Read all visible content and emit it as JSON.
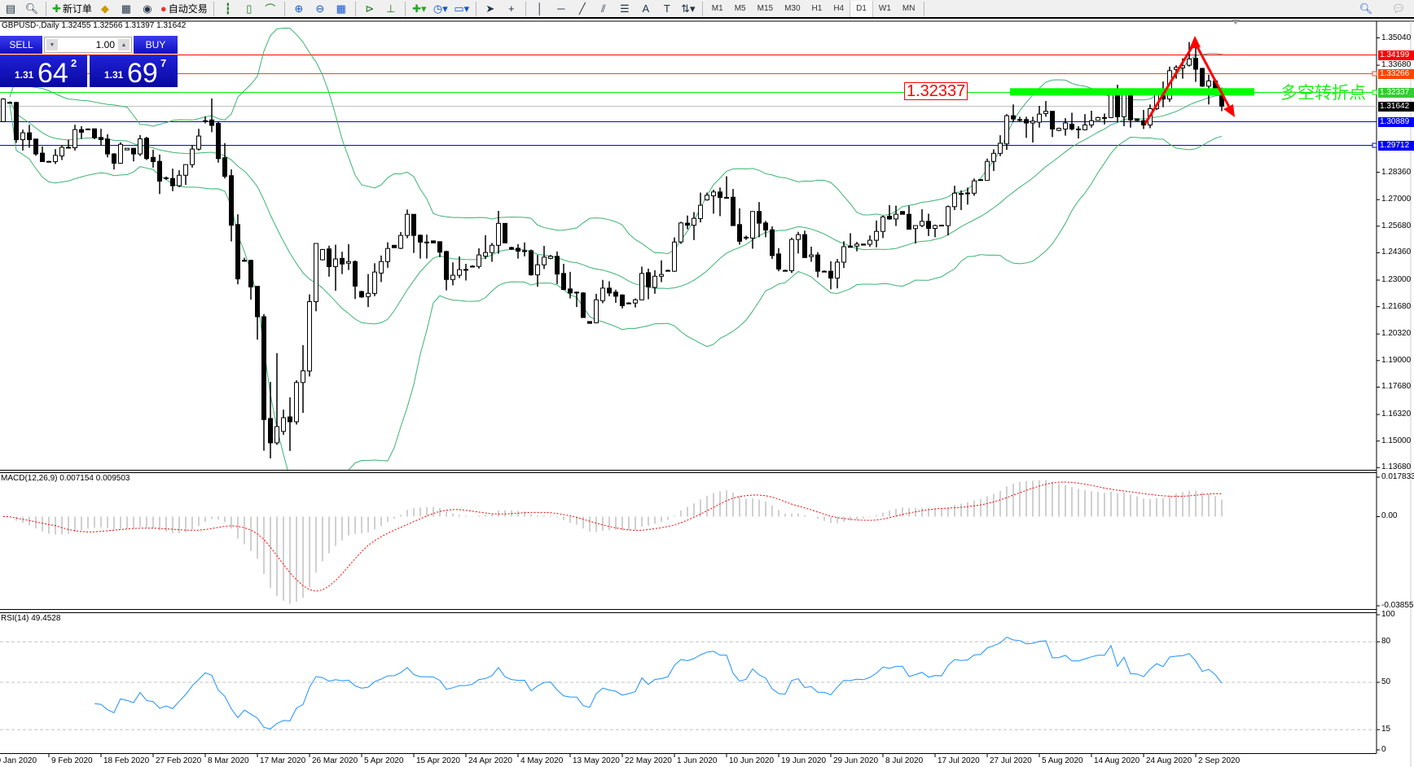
{
  "toolbar": {
    "new_order_label": "新订单",
    "auto_trading_label": "自动交易",
    "icons": [
      "new-chart-icon",
      "zoom-window-icon",
      "new-order-icon",
      "navigator-icon",
      "data-window-icon",
      "signals-icon",
      "auto-trading-icon",
      "bar-chart-icon",
      "candlestick-icon",
      "line-chart-icon",
      "zoom-in-icon",
      "zoom-out-icon",
      "tile-windows-icon",
      "auto-scroll-icon",
      "chart-shift-icon",
      "indicators-icon",
      "periods-icon",
      "templates-icon",
      "cursor-icon",
      "crosshair-icon",
      "vertical-line-icon",
      "horizontal-line-icon",
      "trendline-icon",
      "equidistant-channel-icon",
      "fibonacci-icon",
      "text-icon",
      "text-label-icon",
      "arrows-icon"
    ],
    "text_tool": "A",
    "timeframes": [
      "M1",
      "M5",
      "M15",
      "M30",
      "H1",
      "H4",
      "D1",
      "W1",
      "MN"
    ],
    "selected_timeframe": "D1"
  },
  "chart_title": "GBPUSD-,Daily  1.32455 1.32566 1.31397 1.31642",
  "one_click": {
    "sell_label": "SELL",
    "buy_label": "BUY",
    "lot": "1.00",
    "sell_price": {
      "big_figure": "1.31",
      "pips": "64",
      "point": "2"
    },
    "buy_price": {
      "big_figure": "1.31",
      "pips": "69",
      "point": "7"
    }
  },
  "annotations": {
    "price_text": "1.32337",
    "chinese_text": "多空转折点",
    "arrow_color": "#ff0000",
    "band_color": "#00ff00"
  },
  "chart_data": {
    "type": "candlestick",
    "symbol": "GBPUSD-",
    "timeframe": "Daily",
    "ylim": [
      1.1368,
      1.3504
    ],
    "price_ticks": [
      "1.35040",
      "1.33680",
      "1.28360",
      "1.27000",
      "1.25680",
      "1.24360",
      "1.23000",
      "1.21680",
      "1.20320",
      "1.19000",
      "1.17680",
      "1.16320",
      "1.15000",
      "1.13680"
    ],
    "date_labels": [
      "30 Jan 2020",
      "9 Feb 2020",
      "18 Feb 2020",
      "27 Feb 2020",
      "8 Mar 2020",
      "17 Mar 2020",
      "26 Mar 2020",
      "5 Apr 2020",
      "15 Apr 2020",
      "24 Apr 2020",
      "4 May 2020",
      "13 May 2020",
      "22 May 2020",
      "1 Jun 2020",
      "10 Jun 2020",
      "19 Jun 2020",
      "29 Jun 2020",
      "8 Jul 2020",
      "17 Jul 2020",
      "27 Jul 2020",
      "5 Aug 2020",
      "14 Aug 2020",
      "24 Aug 2020",
      "2 Sep 2020"
    ],
    "hlines": [
      {
        "price": "1.34199",
        "color": "#ff0000",
        "label_bg": "#ff0000"
      },
      {
        "price": "1.33266",
        "color": "#ff4500",
        "label_bg": "#ff4500"
      },
      {
        "price": "1.32337",
        "color": "#00ee00",
        "label_bg": "#32cd32"
      },
      {
        "price": "1.31642",
        "color": "#c0c0c0",
        "label_bg": "#000000"
      },
      {
        "price": "1.30889",
        "color": "#0000ff",
        "label_bg": "#0000ff"
      },
      {
        "price": "1.29712",
        "color": "#0000ff",
        "label_bg": "#0000ff"
      }
    ],
    "indicators": {
      "bollinger": {
        "period": 20,
        "deviation": 2,
        "color": "#3cb371"
      },
      "macd": {
        "label": "MACD(12,26,9) 0.007154 0.009503",
        "ylim": [
          -0.038559,
          0.017833
        ],
        "ticks": [
          "0.017833",
          "0.00",
          "-0.038559"
        ],
        "histogram_color": "#c0c0c0",
        "signal_color": "#ff0000"
      },
      "rsi": {
        "label": "RSI(14) 49.4528",
        "levels": [
          80,
          50,
          15
        ],
        "ticks": [
          "100",
          "80",
          "50",
          "15",
          "0"
        ],
        "color": "#1e90ff"
      }
    },
    "candles": [
      [
        1.3088,
        1.3204,
        1.3086,
        1.32
      ],
      [
        1.3183,
        1.3186,
        1.318,
        1.3183
      ],
      [
        1.3183,
        1.3186,
        1.2982,
        1.2998
      ],
      [
        1.2998,
        1.3048,
        1.2944,
        1.3032
      ],
      [
        1.3032,
        1.3072,
        1.2958,
        1.2998
      ],
      [
        1.3001,
        1.3001,
        1.2918,
        1.2927
      ],
      [
        1.2931,
        1.2964,
        1.2889,
        1.2889
      ],
      [
        1.289,
        1.2893,
        1.2887,
        1.289
      ],
      [
        1.2889,
        1.2951,
        1.2877,
        1.292
      ],
      [
        1.2917,
        1.2971,
        1.2897,
        1.296
      ],
      [
        1.2959,
        1.2998,
        1.2954,
        1.296
      ],
      [
        1.2958,
        1.3072,
        1.2944,
        1.3048
      ],
      [
        1.3048,
        1.3065,
        1.3002,
        1.3035
      ],
      [
        1.3051,
        1.3054,
        1.3048,
        1.3051
      ],
      [
        1.3052,
        1.3052,
        1.3,
        1.3008
      ],
      [
        1.3009,
        1.3052,
        1.2971,
        1.2998
      ],
      [
        1.3001,
        1.3025,
        1.291,
        1.2927
      ],
      [
        1.2927,
        1.2931,
        1.285,
        1.2881
      ],
      [
        1.2881,
        1.2985,
        1.2881,
        1.2975
      ],
      [
        1.2947,
        1.2955,
        1.2947,
        1.2955
      ],
      [
        1.2955,
        1.2955,
        1.289,
        1.2927
      ],
      [
        1.2927,
        1.3021,
        1.2917,
        1.3002
      ],
      [
        1.3005,
        1.3012,
        1.2897,
        1.2904
      ],
      [
        1.291,
        1.2948,
        1.2859,
        1.2889
      ],
      [
        1.289,
        1.2924,
        1.2728,
        1.2792
      ],
      [
        1.2808,
        1.2815,
        1.2799,
        1.2808
      ],
      [
        1.2805,
        1.2854,
        1.2742,
        1.2769
      ],
      [
        1.2769,
        1.2846,
        1.2762,
        1.2821
      ],
      [
        1.2821,
        1.2874,
        1.2773,
        1.2874
      ],
      [
        1.2874,
        1.2971,
        1.2859,
        1.2951
      ],
      [
        1.2951,
        1.3052,
        1.2944,
        1.3016
      ],
      [
        1.3092,
        1.3113,
        1.3079,
        1.3092
      ],
      [
        1.3096,
        1.3203,
        1.3035,
        1.3069
      ],
      [
        1.3079,
        1.3088,
        1.2884,
        1.2904
      ],
      [
        1.2908,
        1.2981,
        1.2805,
        1.2816
      ],
      [
        1.2819,
        1.285,
        1.2492,
        1.2573
      ],
      [
        1.2576,
        1.2627,
        1.2279,
        1.2306
      ],
      [
        1.2398,
        1.2411,
        1.2391,
        1.2398
      ],
      [
        1.2398,
        1.2401,
        1.2203,
        1.2266
      ],
      [
        1.2269,
        1.2269,
        1.2004,
        1.2118
      ],
      [
        1.2118,
        1.2131,
        1.1452,
        1.1607
      ],
      [
        1.1612,
        1.1794,
        1.1414,
        1.1491
      ],
      [
        1.1491,
        1.1937,
        1.1481,
        1.1572
      ],
      [
        1.1548,
        1.1656,
        1.1531,
        1.1616
      ],
      [
        1.162,
        1.1717,
        1.1451,
        1.1596
      ],
      [
        1.1596,
        1.1802,
        1.1582,
        1.1791
      ],
      [
        1.1791,
        1.1977,
        1.164,
        1.1849
      ],
      [
        1.1848,
        1.2229,
        1.1821,
        1.2193
      ],
      [
        1.2193,
        1.2484,
        1.2145,
        1.2482
      ],
      [
        1.2401,
        1.2455,
        1.2398,
        1.2452
      ],
      [
        1.2455,
        1.2471,
        1.2317,
        1.2367
      ],
      [
        1.2367,
        1.2476,
        1.2247,
        1.2405
      ],
      [
        1.2408,
        1.2441,
        1.233,
        1.238
      ],
      [
        1.2384,
        1.2479,
        1.235,
        1.2392
      ],
      [
        1.2392,
        1.2398,
        1.2206,
        1.227
      ],
      [
        1.2243,
        1.2247,
        1.2212,
        1.2216
      ],
      [
        1.2218,
        1.233,
        1.2166,
        1.2234
      ],
      [
        1.2234,
        1.2384,
        1.222,
        1.234
      ],
      [
        1.2335,
        1.2422,
        1.229,
        1.2392
      ],
      [
        1.2392,
        1.2488,
        1.2361,
        1.2457
      ],
      [
        1.2473,
        1.2473,
        1.2461,
        1.2461
      ],
      [
        1.2458,
        1.2539,
        1.2454,
        1.2522
      ],
      [
        1.2522,
        1.2651,
        1.2508,
        1.2627
      ],
      [
        1.2627,
        1.2627,
        1.2435,
        1.2522
      ],
      [
        1.2523,
        1.2526,
        1.2407,
        1.2489
      ],
      [
        1.2489,
        1.2526,
        1.2407,
        1.2489
      ],
      [
        1.2495,
        1.2495,
        1.2485,
        1.2485
      ],
      [
        1.2491,
        1.2491,
        1.2414,
        1.2439
      ],
      [
        1.2442,
        1.2446,
        1.2249,
        1.2303
      ],
      [
        1.2303,
        1.2388,
        1.2274,
        1.2324
      ],
      [
        1.2324,
        1.2418,
        1.231,
        1.2352
      ],
      [
        1.2353,
        1.2381,
        1.2298,
        1.2353
      ],
      [
        1.2369,
        1.2374,
        1.2364,
        1.2369
      ],
      [
        1.2368,
        1.2458,
        1.2357,
        1.2425
      ],
      [
        1.2419,
        1.2523,
        1.2404,
        1.2437
      ],
      [
        1.2437,
        1.2485,
        1.2391,
        1.2473
      ],
      [
        1.2473,
        1.2644,
        1.2431,
        1.2582
      ],
      [
        1.2582,
        1.2582,
        1.2485,
        1.2485
      ],
      [
        1.2462,
        1.2466,
        1.245,
        1.2454
      ],
      [
        1.2458,
        1.2479,
        1.2407,
        1.2444
      ],
      [
        1.2446,
        1.2487,
        1.2418,
        1.2446
      ],
      [
        1.2446,
        1.2452,
        1.2322,
        1.2326
      ],
      [
        1.2326,
        1.2425,
        1.2267,
        1.2376
      ],
      [
        1.2376,
        1.247,
        1.2355,
        1.2414
      ],
      [
        1.2408,
        1.2425,
        1.2404,
        1.2418
      ],
      [
        1.2418,
        1.2442,
        1.228,
        1.233
      ],
      [
        1.2333,
        1.2381,
        1.2252,
        1.2253
      ],
      [
        1.2256,
        1.2341,
        1.2209,
        1.2236
      ],
      [
        1.224,
        1.2243,
        1.2166,
        1.2236
      ],
      [
        1.2236,
        1.224,
        1.2114,
        1.2114
      ],
      [
        1.2094,
        1.2094,
        1.2085,
        1.2085
      ],
      [
        1.2088,
        1.2232,
        1.2085,
        1.2202
      ],
      [
        1.2198,
        1.2301,
        1.2185,
        1.226
      ],
      [
        1.226,
        1.2294,
        1.222,
        1.2236
      ],
      [
        1.224,
        1.2252,
        1.2187,
        1.222
      ],
      [
        1.2226,
        1.2229,
        1.2159,
        1.2173
      ],
      [
        1.2186,
        1.219,
        1.2182,
        1.2186
      ],
      [
        1.2186,
        1.2209,
        1.2164,
        1.2202
      ],
      [
        1.2202,
        1.2367,
        1.22,
        1.2333
      ],
      [
        1.2337,
        1.2357,
        1.2205,
        1.2266
      ],
      [
        1.2264,
        1.2349,
        1.2232,
        1.2319
      ],
      [
        1.2319,
        1.2398,
        1.229,
        1.2328
      ],
      [
        1.2348,
        1.2352,
        1.2344,
        1.2348
      ],
      [
        1.2344,
        1.2512,
        1.2341,
        1.2489
      ],
      [
        1.249,
        1.259,
        1.248,
        1.2584
      ],
      [
        1.2583,
        1.2621,
        1.2553,
        1.2573
      ],
      [
        1.2573,
        1.2638,
        1.2499,
        1.2607
      ],
      [
        1.2606,
        1.2735,
        1.2587,
        1.2672
      ],
      [
        1.2699,
        1.2735,
        1.2695,
        1.2722
      ],
      [
        1.2719,
        1.2749,
        1.263,
        1.2738
      ],
      [
        1.2738,
        1.276,
        1.2618,
        1.2711
      ],
      [
        1.2711,
        1.2816,
        1.2709,
        1.2711
      ],
      [
        1.2712,
        1.2753,
        1.2571,
        1.2571
      ],
      [
        1.2576,
        1.2657,
        1.2476,
        1.2493
      ],
      [
        1.2513,
        1.2521,
        1.25,
        1.2513
      ],
      [
        1.2509,
        1.2641,
        1.2456,
        1.2641
      ],
      [
        1.2641,
        1.2688,
        1.2513,
        1.2583
      ],
      [
        1.2584,
        1.2594,
        1.2513,
        1.2549
      ],
      [
        1.255,
        1.2567,
        1.2405,
        1.2422
      ],
      [
        1.243,
        1.2459,
        1.2344,
        1.2355
      ],
      [
        1.2348,
        1.2352,
        1.2344,
        1.2348
      ],
      [
        1.2347,
        1.2511,
        1.2335,
        1.2502
      ],
      [
        1.2502,
        1.254,
        1.2432,
        1.2526
      ],
      [
        1.2526,
        1.2546,
        1.2412,
        1.2412
      ],
      [
        1.2417,
        1.2466,
        1.2391,
        1.2425
      ],
      [
        1.2425,
        1.2439,
        1.2314,
        1.2344
      ],
      [
        1.2344,
        1.2348,
        1.234,
        1.2344
      ],
      [
        1.2344,
        1.2394,
        1.2254,
        1.231
      ],
      [
        1.231,
        1.2405,
        1.2259,
        1.2389
      ],
      [
        1.2389,
        1.2493,
        1.236,
        1.2466
      ],
      [
        1.2469,
        1.2533,
        1.2463,
        1.2463
      ],
      [
        1.2469,
        1.249,
        1.2443,
        1.2479
      ],
      [
        1.2479,
        1.2479,
        1.2474,
        1.2474
      ],
      [
        1.2478,
        1.2522,
        1.2466,
        1.2498
      ],
      [
        1.2498,
        1.2596,
        1.2463,
        1.2542
      ],
      [
        1.2542,
        1.2621,
        1.2509,
        1.2614
      ],
      [
        1.2617,
        1.2673,
        1.26,
        1.2604
      ],
      [
        1.2604,
        1.267,
        1.2569,
        1.2627
      ],
      [
        1.2641,
        1.2641,
        1.2627,
        1.2627
      ],
      [
        1.2627,
        1.267,
        1.2553,
        1.2553
      ],
      [
        1.2556,
        1.2571,
        1.2482,
        1.2571
      ],
      [
        1.2571,
        1.2652,
        1.2563,
        1.2592
      ],
      [
        1.2592,
        1.263,
        1.2519,
        1.2557
      ],
      [
        1.2557,
        1.2576,
        1.2513,
        1.2571
      ],
      [
        1.2573,
        1.2573,
        1.2569,
        1.2569
      ],
      [
        1.2571,
        1.2671,
        1.2522,
        1.2665
      ],
      [
        1.2665,
        1.2769,
        1.2648,
        1.2732
      ],
      [
        1.2731,
        1.2746,
        1.2648,
        1.2726
      ],
      [
        1.2733,
        1.276,
        1.2675,
        1.2733
      ],
      [
        1.2732,
        1.2805,
        1.2719,
        1.2793
      ],
      [
        1.2799,
        1.2802,
        1.2796,
        1.2799
      ],
      [
        1.2796,
        1.2904,
        1.2796,
        1.289
      ],
      [
        1.289,
        1.295,
        1.2842,
        1.293
      ],
      [
        1.293,
        1.302,
        1.2916,
        1.298
      ],
      [
        1.2977,
        1.3125,
        1.2947,
        1.3117
      ],
      [
        1.3117,
        1.3173,
        1.3085,
        1.3101
      ],
      [
        1.3098,
        1.3112,
        1.3088,
        1.3098
      ],
      [
        1.3098,
        1.3112,
        1.3007,
        1.3081
      ],
      [
        1.3081,
        1.3112,
        1.2984,
        1.309
      ],
      [
        1.3085,
        1.3166,
        1.3058,
        1.3125
      ],
      [
        1.3128,
        1.319,
        1.3112,
        1.3139
      ],
      [
        1.3139,
        1.3139,
        1.3011,
        1.3051
      ],
      [
        1.3044,
        1.3058,
        1.304,
        1.3054
      ],
      [
        1.3051,
        1.3105,
        1.3018,
        1.3081
      ],
      [
        1.3075,
        1.3132,
        1.3044,
        1.3051
      ],
      [
        1.3051,
        1.3065,
        1.3004,
        1.3051
      ],
      [
        1.3047,
        1.3125,
        1.3044,
        1.3071
      ],
      [
        1.3071,
        1.3142,
        1.3058,
        1.3092
      ],
      [
        1.3094,
        1.3112,
        1.3092,
        1.3108
      ],
      [
        1.3108,
        1.3128,
        1.3074,
        1.3108
      ],
      [
        1.3108,
        1.3231,
        1.3105,
        1.3223
      ],
      [
        1.3223,
        1.3271,
        1.3085,
        1.3112
      ],
      [
        1.3112,
        1.3223,
        1.3065,
        1.3223
      ],
      [
        1.3223,
        1.3223,
        1.3058,
        1.3096
      ],
      [
        1.3101,
        1.3103,
        1.309,
        1.3093
      ],
      [
        1.3092,
        1.3146,
        1.3051,
        1.3071
      ],
      [
        1.3071,
        1.3173,
        1.3055,
        1.3152
      ],
      [
        1.3152,
        1.3233,
        1.3146,
        1.3223
      ],
      [
        1.3223,
        1.3287,
        1.3159,
        1.32
      ],
      [
        1.32,
        1.3361,
        1.3186,
        1.3341
      ],
      [
        1.3347,
        1.3368,
        1.3301,
        1.3357
      ],
      [
        1.3355,
        1.3402,
        1.3301,
        1.3365
      ],
      [
        1.3368,
        1.3483,
        1.3361,
        1.3399
      ],
      [
        1.3402,
        1.3456,
        1.3285,
        1.3348
      ],
      [
        1.3352,
        1.3355,
        1.326,
        1.3264
      ],
      [
        1.3264,
        1.3321,
        1.3173,
        1.329
      ],
      [
        1.329,
        1.33,
        1.323,
        1.3245
      ],
      [
        1.32455,
        1.32566,
        1.31397,
        1.31642
      ]
    ]
  }
}
